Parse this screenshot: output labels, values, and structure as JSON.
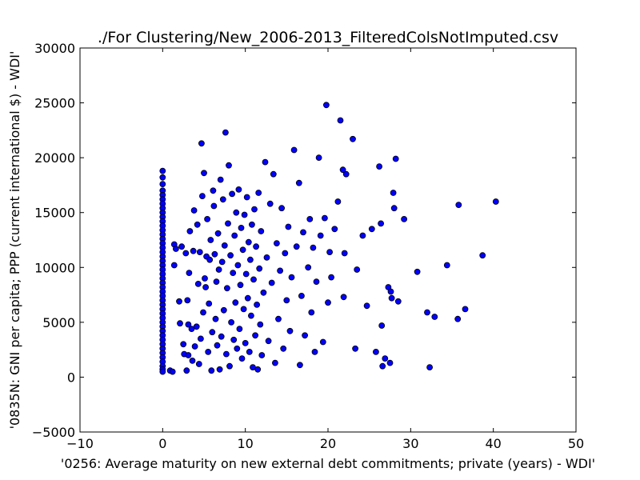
{
  "chart_data": {
    "type": "scatter",
    "title": "./For Clustering/New_2006-2013_FilteredColsNotImputed.csv",
    "xlabel": "'0256: Average maturity on new external debt commitments; private  (years) - WDI'",
    "ylabel": "'0835N: GNI per capita; PPP  (current international $) - WDI'",
    "xlim": [
      -10,
      50
    ],
    "ylim": [
      -5000,
      30000
    ],
    "xticks": [
      -10,
      0,
      10,
      20,
      30,
      40,
      50
    ],
    "xtick_labels": [
      "−10",
      "0",
      "10",
      "20",
      "30",
      "40",
      "50"
    ],
    "yticks": [
      -5000,
      0,
      5000,
      10000,
      15000,
      20000,
      25000,
      30000
    ],
    "ytick_labels": [
      "−5000",
      "0",
      "5000",
      "10000",
      "15000",
      "20000",
      "25000",
      "30000"
    ],
    "grid": false,
    "marker_color": "#0000ff",
    "marker_edge": "#000000",
    "series": [
      {
        "points": [
          [
            0,
            18800
          ],
          [
            0,
            18200
          ],
          [
            0,
            17600
          ],
          [
            0,
            17000
          ],
          [
            0,
            16600
          ],
          [
            0,
            16200
          ],
          [
            0,
            15800
          ],
          [
            0,
            15400
          ],
          [
            0,
            15000
          ],
          [
            0,
            14600
          ],
          [
            0,
            14200
          ],
          [
            0,
            13800
          ],
          [
            0,
            13400
          ],
          [
            0,
            13000
          ],
          [
            0,
            12600
          ],
          [
            0,
            12200
          ],
          [
            0,
            11800
          ],
          [
            0,
            11400
          ],
          [
            0,
            11000
          ],
          [
            0,
            10600
          ],
          [
            0,
            10200
          ],
          [
            0,
            9800
          ],
          [
            0,
            9400
          ],
          [
            0,
            9000
          ],
          [
            0,
            8600
          ],
          [
            0,
            8200
          ],
          [
            0,
            7800
          ],
          [
            0,
            7400
          ],
          [
            0,
            7000
          ],
          [
            0,
            6600
          ],
          [
            0,
            6200
          ],
          [
            0,
            5800
          ],
          [
            0,
            5400
          ],
          [
            0,
            5000
          ],
          [
            0,
            4600
          ],
          [
            0,
            4200
          ],
          [
            0,
            3800
          ],
          [
            0,
            3400
          ],
          [
            0,
            3000
          ],
          [
            0,
            2600
          ],
          [
            0,
            2200
          ],
          [
            0,
            1800
          ],
          [
            0,
            1400
          ],
          [
            0,
            1000
          ],
          [
            0,
            700
          ],
          [
            0,
            500
          ],
          [
            0.9,
            600
          ],
          [
            1.2,
            500
          ],
          [
            1.4,
            12100
          ],
          [
            1.4,
            10200
          ],
          [
            1.6,
            11700
          ],
          [
            2.0,
            6900
          ],
          [
            2.1,
            4900
          ],
          [
            2.3,
            11900
          ],
          [
            2.5,
            3000
          ],
          [
            2.6,
            2100
          ],
          [
            2.8,
            11300
          ],
          [
            2.9,
            600
          ],
          [
            3.0,
            7000
          ],
          [
            3.1,
            2000
          ],
          [
            3.1,
            4800
          ],
          [
            3.2,
            9500
          ],
          [
            3.3,
            13300
          ],
          [
            3.5,
            4400
          ],
          [
            3.6,
            1500
          ],
          [
            3.7,
            11500
          ],
          [
            3.8,
            15200
          ],
          [
            3.9,
            2800
          ],
          [
            4.1,
            4600
          ],
          [
            4.2,
            13900
          ],
          [
            4.3,
            8500
          ],
          [
            4.4,
            1200
          ],
          [
            4.5,
            11400
          ],
          [
            4.6,
            3500
          ],
          [
            4.7,
            21300
          ],
          [
            4.8,
            16500
          ],
          [
            4.9,
            5900
          ],
          [
            5.0,
            18600
          ],
          [
            5.1,
            9000
          ],
          [
            5.2,
            8200
          ],
          [
            5.3,
            11000
          ],
          [
            5.4,
            14400
          ],
          [
            5.5,
            2300
          ],
          [
            5.6,
            6700
          ],
          [
            5.7,
            10700
          ],
          [
            5.8,
            12500
          ],
          [
            5.9,
            600
          ],
          [
            6.0,
            4100
          ],
          [
            6.1,
            17000
          ],
          [
            6.2,
            15600
          ],
          [
            6.3,
            11200
          ],
          [
            6.4,
            5300
          ],
          [
            6.5,
            8700
          ],
          [
            6.6,
            2900
          ],
          [
            6.7,
            13100
          ],
          [
            6.8,
            9800
          ],
          [
            6.9,
            700
          ],
          [
            7.0,
            18000
          ],
          [
            7.1,
            3700
          ],
          [
            7.2,
            10500
          ],
          [
            7.3,
            16200
          ],
          [
            7.4,
            6100
          ],
          [
            7.5,
            12000
          ],
          [
            7.6,
            22300
          ],
          [
            7.7,
            2100
          ],
          [
            7.8,
            8100
          ],
          [
            7.9,
            14000
          ],
          [
            8.0,
            19300
          ],
          [
            8.1,
            1000
          ],
          [
            8.2,
            11100
          ],
          [
            8.3,
            5000
          ],
          [
            8.4,
            16700
          ],
          [
            8.5,
            9500
          ],
          [
            8.6,
            3400
          ],
          [
            8.7,
            12900
          ],
          [
            8.8,
            6800
          ],
          [
            8.9,
            15000
          ],
          [
            9.0,
            2600
          ],
          [
            9.1,
            10200
          ],
          [
            9.2,
            17100
          ],
          [
            9.3,
            4400
          ],
          [
            9.4,
            8400
          ],
          [
            9.5,
            13600
          ],
          [
            9.6,
            1700
          ],
          [
            9.7,
            11600
          ],
          [
            9.8,
            6200
          ],
          [
            9.9,
            14800
          ],
          [
            10.0,
            3100
          ],
          [
            10.1,
            9400
          ],
          [
            10.2,
            16400
          ],
          [
            10.3,
            7200
          ],
          [
            10.4,
            12300
          ],
          [
            10.5,
            2300
          ],
          [
            10.6,
            10700
          ],
          [
            10.7,
            5600
          ],
          [
            10.8,
            13900
          ],
          [
            10.9,
            900
          ],
          [
            11.0,
            8900
          ],
          [
            11.1,
            15300
          ],
          [
            11.2,
            3800
          ],
          [
            11.3,
            11900
          ],
          [
            11.4,
            6600
          ],
          [
            11.5,
            700
          ],
          [
            11.6,
            16800
          ],
          [
            11.7,
            9900
          ],
          [
            11.8,
            4800
          ],
          [
            11.9,
            13300
          ],
          [
            12.0,
            2000
          ],
          [
            12.2,
            7700
          ],
          [
            12.4,
            19600
          ],
          [
            12.6,
            10900
          ],
          [
            12.8,
            3300
          ],
          [
            13.0,
            15800
          ],
          [
            13.2,
            8600
          ],
          [
            13.4,
            18500
          ],
          [
            13.6,
            1300
          ],
          [
            13.8,
            12200
          ],
          [
            14.0,
            5300
          ],
          [
            14.2,
            9700
          ],
          [
            14.4,
            15400
          ],
          [
            14.6,
            2600
          ],
          [
            14.8,
            11300
          ],
          [
            15.0,
            7000
          ],
          [
            15.2,
            13700
          ],
          [
            15.4,
            4200
          ],
          [
            15.6,
            9100
          ],
          [
            15.9,
            20700
          ],
          [
            16.2,
            11900
          ],
          [
            16.5,
            17700
          ],
          [
            16.6,
            1100
          ],
          [
            16.8,
            7400
          ],
          [
            17.0,
            13200
          ],
          [
            17.2,
            3800
          ],
          [
            17.6,
            10000
          ],
          [
            17.8,
            14400
          ],
          [
            18.0,
            5900
          ],
          [
            18.2,
            11800
          ],
          [
            18.4,
            2300
          ],
          [
            18.6,
            8700
          ],
          [
            18.9,
            20000
          ],
          [
            19.1,
            12900
          ],
          [
            19.4,
            3200
          ],
          [
            19.6,
            14500
          ],
          [
            19.8,
            24800
          ],
          [
            20.0,
            6800
          ],
          [
            20.2,
            11400
          ],
          [
            20.4,
            9100
          ],
          [
            20.8,
            13500
          ],
          [
            21.2,
            16000
          ],
          [
            21.5,
            23400
          ],
          [
            21.8,
            18900
          ],
          [
            21.9,
            7300
          ],
          [
            22.0,
            11300
          ],
          [
            22.2,
            18500
          ],
          [
            23.0,
            21700
          ],
          [
            23.3,
            2600
          ],
          [
            23.5,
            9800
          ],
          [
            24.2,
            12900
          ],
          [
            24.7,
            6500
          ],
          [
            25.3,
            13500
          ],
          [
            25.8,
            2300
          ],
          [
            26.2,
            19200
          ],
          [
            26.4,
            14000
          ],
          [
            26.5,
            4700
          ],
          [
            26.6,
            1000
          ],
          [
            26.9,
            1700
          ],
          [
            27.3,
            8200
          ],
          [
            27.5,
            1300
          ],
          [
            27.6,
            7800
          ],
          [
            27.7,
            7200
          ],
          [
            27.9,
            16800
          ],
          [
            28.0,
            15400
          ],
          [
            28.2,
            19900
          ],
          [
            28.5,
            6900
          ],
          [
            29.2,
            14400
          ],
          [
            30.8,
            9600
          ],
          [
            32.0,
            5900
          ],
          [
            32.3,
            900
          ],
          [
            32.9,
            5500
          ],
          [
            34.4,
            10200
          ],
          [
            35.7,
            5300
          ],
          [
            35.8,
            15700
          ],
          [
            36.6,
            6200
          ],
          [
            38.7,
            11100
          ],
          [
            40.3,
            16000
          ]
        ]
      }
    ]
  }
}
